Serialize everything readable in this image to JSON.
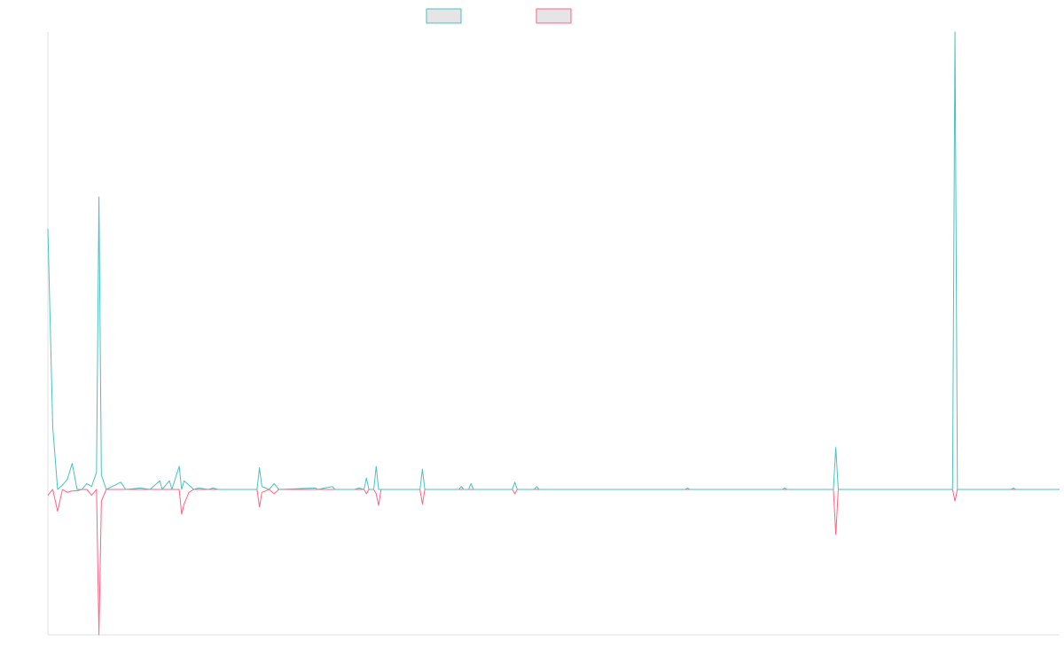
{
  "chart_data": {
    "type": "line",
    "title": "",
    "xlabel": "",
    "ylabel": "",
    "grid": false,
    "legend": {
      "position": "top-center",
      "labels_shown": false
    },
    "colors": {
      "series_a": "#4bc0c0",
      "series_b": "#ff6384",
      "swatch_fill": "#e5e5e5",
      "axis": "#e0e0e0"
    },
    "ylim": [
      -100,
      316
    ],
    "x_count": 208,
    "series": [
      {
        "key": "a",
        "points": [
          [
            0,
            180
          ],
          [
            2,
            43
          ],
          [
            4,
            0
          ],
          [
            6,
            3
          ],
          [
            8,
            7
          ],
          [
            10,
            18
          ],
          [
            12,
            0
          ],
          [
            14,
            0
          ],
          [
            16,
            4
          ],
          [
            18,
            2
          ],
          [
            20,
            12
          ],
          [
            21,
            202
          ],
          [
            22,
            10
          ],
          [
            24,
            0
          ],
          [
            30,
            5
          ],
          [
            32,
            0
          ],
          [
            38,
            1
          ],
          [
            42,
            0
          ],
          [
            46,
            6
          ],
          [
            47,
            0
          ],
          [
            50,
            6
          ],
          [
            51,
            0
          ],
          [
            54,
            16
          ],
          [
            55,
            0
          ],
          [
            56,
            6
          ],
          [
            58,
            3
          ],
          [
            60,
            0
          ],
          [
            62,
            1
          ],
          [
            66,
            0
          ],
          [
            68,
            1
          ],
          [
            70,
            0
          ],
          [
            86,
            0
          ],
          [
            87,
            15
          ],
          [
            88,
            2
          ],
          [
            91,
            0
          ],
          [
            93,
            4
          ],
          [
            95,
            0
          ],
          [
            110,
            1
          ],
          [
            111,
            0
          ],
          [
            117,
            2
          ],
          [
            118,
            0
          ],
          [
            126,
            0
          ],
          [
            128,
            1
          ],
          [
            130,
            0
          ],
          [
            131,
            8
          ],
          [
            132,
            0
          ],
          [
            134,
            0
          ],
          [
            135,
            16
          ],
          [
            136,
            0
          ],
          [
            153,
            0
          ],
          [
            154,
            14
          ],
          [
            155,
            0
          ],
          [
            169,
            0
          ],
          [
            170,
            2
          ],
          [
            171,
            0
          ],
          [
            173,
            0
          ],
          [
            174,
            4
          ],
          [
            175,
            0
          ],
          [
            191,
            0
          ],
          [
            192,
            5
          ],
          [
            193,
            0
          ],
          [
            200,
            0
          ],
          [
            201,
            2
          ],
          [
            202,
            0
          ],
          [
            262,
            0
          ],
          [
            263,
            1
          ],
          [
            264,
            0
          ],
          [
            302,
            0
          ],
          [
            303,
            1
          ],
          [
            304,
            0
          ],
          [
            323,
            0
          ],
          [
            324,
            29
          ],
          [
            325,
            0
          ],
          [
            372,
            0
          ],
          [
            373,
            316
          ],
          [
            374,
            0
          ],
          [
            396,
            0
          ],
          [
            397,
            1
          ],
          [
            398,
            0
          ],
          [
            416,
            0
          ]
        ]
      },
      {
        "key": "b",
        "points": [
          [
            0,
            -4
          ],
          [
            2,
            0
          ],
          [
            4,
            -15
          ],
          [
            6,
            0
          ],
          [
            8,
            -2
          ],
          [
            10,
            -1
          ],
          [
            12,
            -1
          ],
          [
            14,
            0
          ],
          [
            16,
            0
          ],
          [
            18,
            -4
          ],
          [
            20,
            0
          ],
          [
            21,
            -100
          ],
          [
            22,
            -8
          ],
          [
            24,
            0
          ],
          [
            54,
            0
          ],
          [
            55,
            -17
          ],
          [
            56,
            -10
          ],
          [
            58,
            -2
          ],
          [
            60,
            0
          ],
          [
            86,
            0
          ],
          [
            87,
            -12
          ],
          [
            88,
            -2
          ],
          [
            91,
            0
          ],
          [
            93,
            -3
          ],
          [
            95,
            0
          ],
          [
            126,
            0
          ],
          [
            130,
            0
          ],
          [
            131,
            -3
          ],
          [
            132,
            0
          ],
          [
            134,
            0
          ],
          [
            135,
            -3
          ],
          [
            136,
            -11
          ],
          [
            137,
            0
          ],
          [
            153,
            0
          ],
          [
            154,
            -10
          ],
          [
            155,
            0
          ],
          [
            191,
            0
          ],
          [
            192,
            -3
          ],
          [
            193,
            0
          ],
          [
            323,
            0
          ],
          [
            324,
            -31
          ],
          [
            325,
            0
          ],
          [
            372,
            0
          ],
          [
            373,
            -8
          ],
          [
            374,
            0
          ],
          [
            416,
            0
          ]
        ]
      }
    ]
  }
}
